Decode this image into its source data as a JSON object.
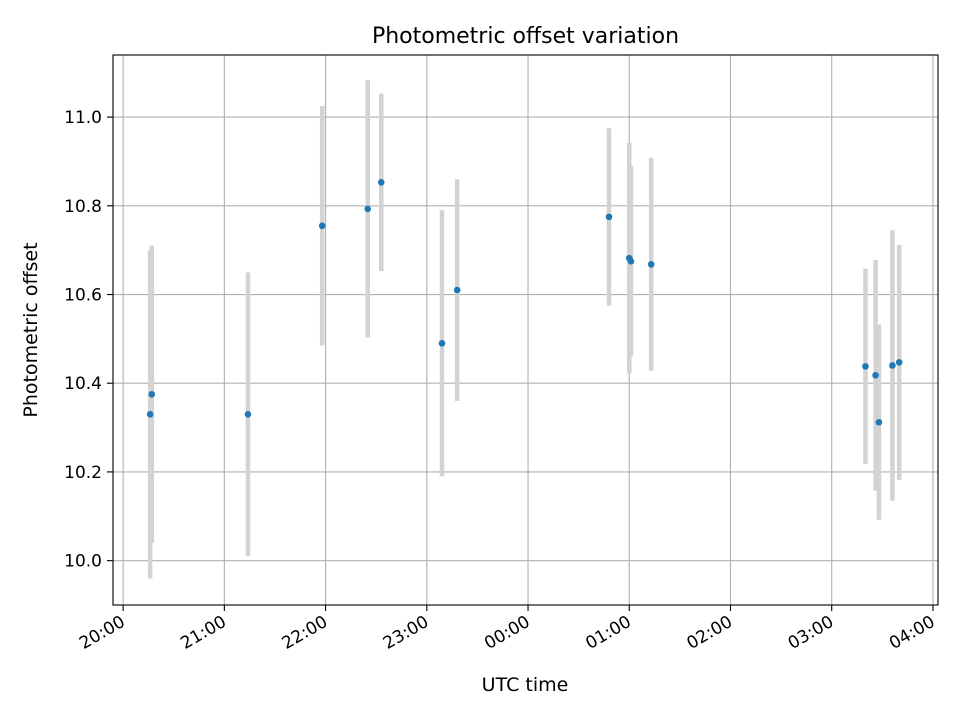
{
  "chart_data": {
    "type": "scatter",
    "title": "Photometric offset variation",
    "xlabel": "UTC time",
    "ylabel": "Photometric offset",
    "xlim": [
      "2000-01-01T19:54",
      "2000-01-02T04:03"
    ],
    "ylim": [
      9.9,
      11.14
    ],
    "grid": true,
    "xticks": [
      "20:00",
      "21:00",
      "22:00",
      "23:00",
      "00:00",
      "01:00",
      "02:00",
      "03:00",
      "04:00"
    ],
    "yticks": [
      "10.0",
      "10.2",
      "10.4",
      "10.6",
      "10.8",
      "11.0"
    ],
    "xtick_values": [
      "2000-01-01T20:00",
      "2000-01-01T21:00",
      "2000-01-01T22:00",
      "2000-01-01T23:00",
      "2000-01-02T00:00",
      "2000-01-02T01:00",
      "2000-01-02T02:00",
      "2000-01-02T03:00",
      "2000-01-02T04:00"
    ],
    "ytick_values": [
      10.0,
      10.2,
      10.4,
      10.6,
      10.8,
      11.0
    ],
    "points": [
      {
        "x": "2000-01-01T20:16",
        "y": 10.33,
        "yerr": 0.37
      },
      {
        "x": "2000-01-01T20:17",
        "y": 10.375,
        "yerr": 0.335
      },
      {
        "x": "2000-01-01T21:14",
        "y": 10.33,
        "yerr": 0.32
      },
      {
        "x": "2000-01-01T21:58",
        "y": 10.755,
        "yerr": 0.27
      },
      {
        "x": "2000-01-01T22:25",
        "y": 10.793,
        "yerr": 0.29
      },
      {
        "x": "2000-01-01T22:33",
        "y": 10.853,
        "yerr": 0.2
      },
      {
        "x": "2000-01-01T23:09",
        "y": 10.49,
        "yerr": 0.3
      },
      {
        "x": "2000-01-01T23:18",
        "y": 10.61,
        "yerr": 0.25
      },
      {
        "x": "2000-01-02T00:48",
        "y": 10.775,
        "yerr": 0.2
      },
      {
        "x": "2000-01-02T01:00",
        "y": 10.682,
        "yerr": 0.26
      },
      {
        "x": "2000-01-02T01:01",
        "y": 10.675,
        "yerr": 0.215
      },
      {
        "x": "2000-01-02T01:13",
        "y": 10.668,
        "yerr": 0.24
      },
      {
        "x": "2000-01-02T03:20",
        "y": 10.438,
        "yerr": 0.22
      },
      {
        "x": "2000-01-02T03:26",
        "y": 10.418,
        "yerr": 0.26
      },
      {
        "x": "2000-01-02T03:28",
        "y": 10.312,
        "yerr": 0.22
      },
      {
        "x": "2000-01-02T03:36",
        "y": 10.44,
        "yerr": 0.305
      },
      {
        "x": "2000-01-02T03:40",
        "y": 10.447,
        "yerr": 0.265
      }
    ],
    "colors": {
      "marker": "#1f77b4",
      "errorbar": "#d3d3d3",
      "grid": "#b0b0b0",
      "axes": "#000000"
    }
  }
}
